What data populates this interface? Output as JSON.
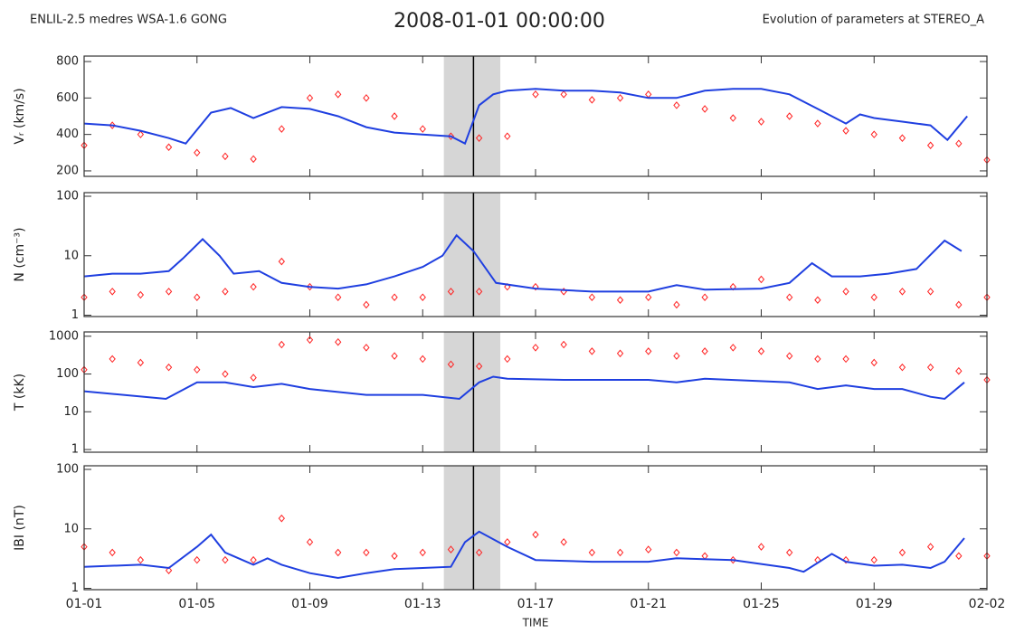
{
  "header": {
    "left": "ENLIL-2.5 medres WSA-1.6 GONG",
    "center": "2008-01-01 00:00:00",
    "right": "Evolution of parameters at STEREO_A"
  },
  "chart_data": [
    {
      "type": "line",
      "y_label": "Vᵣ (km/s)",
      "ylim": [
        170,
        830
      ],
      "yticks": [
        200,
        400,
        600,
        800
      ],
      "log": false,
      "xlim": [
        0,
        32
      ],
      "xticks": [
        0,
        4,
        8,
        12,
        16,
        20,
        24,
        28,
        32
      ],
      "span": [
        12.75,
        14.75
      ],
      "vline": 13.8,
      "series": [
        {
          "color": "#ff2020",
          "mode": "markers",
          "x": [
            0,
            1,
            2,
            3,
            4,
            5,
            6,
            7,
            8,
            9,
            10,
            11,
            12,
            13,
            14,
            15,
            16,
            17,
            18,
            19,
            20,
            21,
            22,
            23,
            24,
            25,
            26,
            27,
            28,
            29,
            30,
            31,
            32
          ],
          "values": [
            340,
            450,
            400,
            330,
            300,
            280,
            265,
            430,
            600,
            620,
            600,
            500,
            430,
            390,
            380,
            390,
            620,
            620,
            590,
            600,
            620,
            560,
            540,
            490,
            470,
            500,
            460,
            420,
            400,
            380,
            340,
            350,
            260
          ]
        },
        {
          "color": "#1f3fe0",
          "mode": "line",
          "x": [
            0,
            1,
            2,
            3,
            3.6,
            4.5,
            5.2,
            6,
            7,
            8,
            9,
            10,
            11,
            12,
            13,
            13.5,
            14,
            14.5,
            15,
            16,
            17,
            18,
            19,
            20,
            21,
            22,
            23,
            24,
            25,
            26,
            27,
            27.5,
            28,
            29,
            30,
            30.6,
            31.3
          ],
          "values": [
            460,
            450,
            420,
            380,
            350,
            520,
            545,
            490,
            550,
            540,
            500,
            440,
            410,
            400,
            390,
            350,
            560,
            620,
            640,
            650,
            640,
            640,
            630,
            600,
            600,
            640,
            650,
            650,
            620,
            540,
            460,
            510,
            490,
            470,
            450,
            370,
            500
          ]
        }
      ]
    },
    {
      "type": "line",
      "y_label": "N (cm⁻³)",
      "ylim": [
        0.95,
        115
      ],
      "yticks": [
        1,
        10,
        100
      ],
      "log": true,
      "xlim": [
        0,
        32
      ],
      "xticks": [
        0,
        4,
        8,
        12,
        16,
        20,
        24,
        28,
        32
      ],
      "span": [
        12.75,
        14.75
      ],
      "vline": 13.8,
      "series": [
        {
          "color": "#ff2020",
          "mode": "markers",
          "x": [
            0,
            1,
            2,
            3,
            4,
            5,
            6,
            7,
            8,
            9,
            10,
            11,
            12,
            13,
            14,
            15,
            16,
            17,
            18,
            19,
            20,
            21,
            22,
            23,
            24,
            25,
            26,
            27,
            28,
            29,
            30,
            31,
            32
          ],
          "values": [
            2,
            2.5,
            2.2,
            2.5,
            2,
            2.5,
            3,
            8,
            3,
            2,
            1.5,
            2,
            2,
            2.5,
            2.5,
            3,
            3,
            2.5,
            2,
            1.8,
            2,
            1.5,
            2,
            3,
            4,
            2,
            1.8,
            2.5,
            2,
            2.5,
            2.5,
            1.5,
            2
          ]
        },
        {
          "color": "#1f3fe0",
          "mode": "line",
          "x": [
            0,
            1,
            2,
            3,
            3.5,
            4.2,
            4.8,
            5.3,
            6.2,
            7,
            8,
            9,
            10,
            11,
            12,
            12.7,
            13.2,
            13.8,
            14.6,
            16,
            18,
            20,
            21,
            22,
            24,
            25,
            25.8,
            26.5,
            27.5,
            28.5,
            29.5,
            30.5,
            31.1
          ],
          "values": [
            4.5,
            5,
            5,
            5.5,
            9,
            19,
            10,
            5,
            5.5,
            3.5,
            3,
            2.8,
            3.3,
            4.5,
            6.5,
            10,
            22,
            12,
            3.5,
            2.8,
            2.5,
            2.5,
            3.2,
            2.7,
            2.8,
            3.5,
            7.5,
            4.5,
            4.5,
            5,
            6,
            18,
            12
          ]
        }
      ]
    },
    {
      "type": "line",
      "y_label": "T (kK)",
      "ylim": [
        0.85,
        1300
      ],
      "yticks": [
        1,
        10,
        100,
        1000
      ],
      "log": true,
      "xlim": [
        0,
        32
      ],
      "xticks": [
        0,
        4,
        8,
        12,
        16,
        20,
        24,
        28,
        32
      ],
      "span": [
        12.75,
        14.75
      ],
      "vline": 13.8,
      "series": [
        {
          "color": "#ff2020",
          "mode": "markers",
          "x": [
            0,
            1,
            2,
            3,
            4,
            5,
            6,
            7,
            8,
            9,
            10,
            11,
            12,
            13,
            14,
            15,
            16,
            17,
            18,
            19,
            20,
            21,
            22,
            23,
            24,
            25,
            26,
            27,
            28,
            29,
            30,
            31,
            32
          ],
          "values": [
            130,
            250,
            200,
            150,
            130,
            100,
            80,
            600,
            800,
            700,
            500,
            300,
            250,
            180,
            160,
            250,
            500,
            600,
            400,
            350,
            400,
            300,
            400,
            500,
            400,
            300,
            250,
            250,
            200,
            150,
            150,
            120,
            70
          ]
        },
        {
          "color": "#1f3fe0",
          "mode": "line",
          "x": [
            0,
            2.9,
            4,
            5,
            6,
            7,
            8,
            10,
            12,
            13.3,
            14,
            14.5,
            15,
            17,
            20,
            21,
            22,
            25,
            26,
            27,
            28,
            29,
            30,
            30.5,
            31.2
          ],
          "values": [
            35,
            22,
            60,
            60,
            45,
            55,
            40,
            28,
            28,
            22,
            60,
            85,
            75,
            70,
            70,
            60,
            75,
            60,
            40,
            50,
            40,
            40,
            25,
            22,
            60
          ]
        }
      ]
    },
    {
      "type": "line",
      "y_label": "IBI (nT)",
      "x_label": "TIME",
      "ylim": [
        0.95,
        115
      ],
      "yticks": [
        1,
        10,
        100
      ],
      "log": true,
      "xlim": [
        0,
        32
      ],
      "xticks": [
        {
          "value": 0,
          "label": "01-01"
        },
        {
          "value": 4,
          "label": "01-05"
        },
        {
          "value": 8,
          "label": "01-09"
        },
        {
          "value": 12,
          "label": "01-13"
        },
        {
          "value": 16,
          "label": "01-17"
        },
        {
          "value": 20,
          "label": "01-21"
        },
        {
          "value": 24,
          "label": "01-25"
        },
        {
          "value": 28,
          "label": "01-29"
        },
        {
          "value": 32,
          "label": "02-02"
        }
      ],
      "span": [
        12.75,
        14.75
      ],
      "vline": 13.8,
      "series": [
        {
          "color": "#ff2020",
          "mode": "markers",
          "x": [
            0,
            1,
            2,
            3,
            4,
            5,
            6,
            7,
            8,
            9,
            10,
            11,
            12,
            13,
            14,
            15,
            16,
            17,
            18,
            19,
            20,
            21,
            22,
            23,
            24,
            25,
            26,
            27,
            28,
            29,
            30,
            31,
            32
          ],
          "values": [
            5,
            4,
            3,
            2,
            3,
            3,
            3,
            15,
            6,
            4,
            4,
            3.5,
            4,
            4.5,
            4,
            6,
            8,
            6,
            4,
            4,
            4.5,
            4,
            3.5,
            3,
            5,
            4,
            3,
            3,
            3,
            4,
            5,
            3.5,
            3.5
          ]
        },
        {
          "color": "#1f3fe0",
          "mode": "line",
          "x": [
            0,
            2,
            3,
            4,
            4.5,
            5,
            6,
            6.5,
            7,
            8,
            9,
            10,
            11,
            12,
            13,
            13.5,
            14,
            15,
            16,
            18,
            20,
            21,
            23,
            25,
            25.5,
            26.5,
            27,
            28,
            29,
            30,
            30.5,
            31.2
          ],
          "values": [
            2.3,
            2.5,
            2.2,
            5,
            8,
            4,
            2.5,
            3.2,
            2.5,
            1.8,
            1.5,
            1.8,
            2.1,
            2.2,
            2.3,
            6,
            9,
            5,
            3,
            2.8,
            2.8,
            3.2,
            3,
            2.2,
            1.9,
            3.8,
            2.8,
            2.4,
            2.5,
            2.2,
            2.8,
            7
          ]
        }
      ]
    }
  ]
}
